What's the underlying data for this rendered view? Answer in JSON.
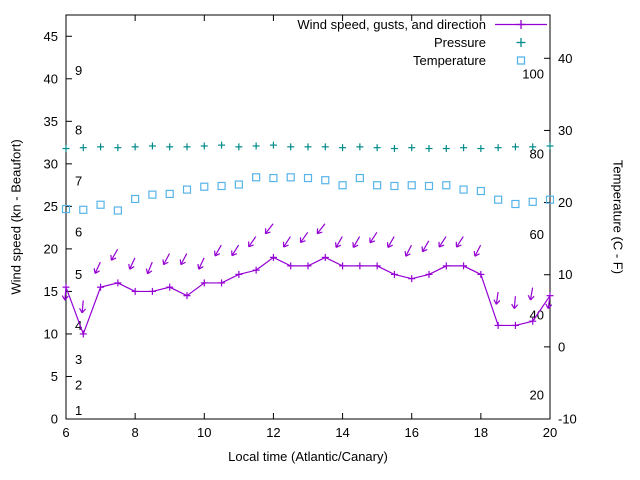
{
  "chart_data": {
    "type": "line",
    "title": "",
    "xlabel": "Local time (Atlantic/Canary)",
    "ylabel_left": "Wind speed (kn - Beaufort)",
    "ylabel_right": "Temperature (C - F)",
    "xlim": [
      6,
      20
    ],
    "ylim_left": [
      0,
      47.5
    ],
    "ylim_right": [
      -10,
      46
    ],
    "x_ticks": [
      6,
      8,
      10,
      12,
      14,
      16,
      18,
      20
    ],
    "y_left_ticks": [
      0,
      5,
      10,
      15,
      20,
      25,
      30,
      35,
      40,
      45
    ],
    "y_right_ticks": [
      -10,
      0,
      10,
      20,
      30,
      40
    ],
    "grid": false,
    "legend_position": "top-right-inside",
    "beaufort_labels": [
      {
        "label": "1",
        "kn": 1
      },
      {
        "label": "2",
        "kn": 4
      },
      {
        "label": "3",
        "kn": 7
      },
      {
        "label": "4",
        "kn": 11
      },
      {
        "label": "5",
        "kn": 17
      },
      {
        "label": "6",
        "kn": 22
      },
      {
        "label": "7",
        "kn": 28
      },
      {
        "label": "8",
        "kn": 34
      },
      {
        "label": "9",
        "kn": 41
      }
    ],
    "fahrenheit_labels": [
      {
        "label": "20",
        "c": -6.7
      },
      {
        "label": "40",
        "c": 4.4
      },
      {
        "label": "60",
        "c": 15.6
      },
      {
        "label": "80",
        "c": 26.7
      },
      {
        "label": "100",
        "c": 37.8
      }
    ],
    "legend": [
      {
        "label": "Wind speed, gusts, and direction",
        "color": "#9400d3",
        "marker": "line-plus"
      },
      {
        "label": "Pressure",
        "color": "#008b8b",
        "marker": "plus"
      },
      {
        "label": "Temperature",
        "color": "#56b4e9",
        "marker": "open-square"
      }
    ],
    "x": [
      6,
      6.5,
      7,
      7.5,
      8,
      8.5,
      9,
      9.5,
      10,
      10.5,
      11,
      11.5,
      12,
      12.5,
      13,
      13.5,
      14,
      14.5,
      15,
      15.5,
      16,
      16.5,
      17,
      17.5,
      18,
      18.5,
      19,
      19.5,
      20
    ],
    "series": [
      {
        "name": "wind_speed",
        "axis": "left",
        "style": "linespoints",
        "marker": "plus",
        "color": "#9400d3",
        "unit": "kn",
        "y": [
          15.5,
          10,
          15.5,
          16,
          15,
          15,
          15.5,
          14.5,
          16,
          16,
          17,
          17.5,
          19,
          18,
          18,
          19,
          18,
          18,
          18,
          17,
          16.5,
          17,
          18,
          18,
          17,
          11,
          11,
          11.5,
          14.5
        ]
      },
      {
        "name": "gusts_direction",
        "axis": "left",
        "style": "vectors",
        "marker": "arrow",
        "color": "#9400d3",
        "unit": "kn",
        "y": [
          15.5,
          14,
          18.5,
          20,
          19,
          18.5,
          19.5,
          19.5,
          19,
          20.5,
          20.5,
          21.5,
          23,
          21.5,
          22,
          23,
          21.5,
          21.5,
          22,
          21.5,
          20.5,
          21,
          21.5,
          21.5,
          20.5,
          15,
          14.5,
          15.5,
          14.5
        ],
        "arrow_angles_deg": [
          5,
          5,
          25,
          30,
          25,
          22,
          28,
          28,
          25,
          30,
          32,
          35,
          38,
          33,
          35,
          38,
          30,
          30,
          33,
          30,
          27,
          30,
          33,
          33,
          27,
          8,
          5,
          10,
          8
        ]
      },
      {
        "name": "pressure",
        "axis": "left",
        "style": "points",
        "marker": "plus",
        "color": "#008b8b",
        "unit": "plotted-left-axis-units",
        "y": [
          31.8,
          31.9,
          32,
          31.9,
          32,
          32.1,
          32,
          32,
          32.1,
          32.2,
          32,
          32.1,
          32.2,
          32,
          32,
          32,
          31.9,
          32,
          31.9,
          31.8,
          31.9,
          31.8,
          31.8,
          31.9,
          31.8,
          31.9,
          32,
          32,
          32.1
        ]
      },
      {
        "name": "temperature",
        "axis": "right",
        "style": "points",
        "marker": "open-square",
        "color": "#56b4e9",
        "unit": "C",
        "y": [
          19.1,
          19.0,
          19.7,
          18.9,
          20.5,
          21.1,
          21.2,
          21.8,
          22.2,
          22.3,
          22.5,
          23.5,
          23.4,
          23.5,
          23.4,
          23.1,
          22.4,
          23.4,
          22.4,
          22.3,
          22.4,
          22.3,
          22.4,
          21.8,
          21.6,
          20.4,
          19.8,
          20.1,
          20.4
        ]
      }
    ]
  }
}
